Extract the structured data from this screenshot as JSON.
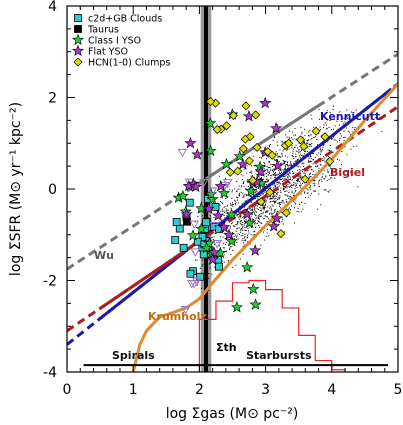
{
  "chart_data": {
    "type": "scatter",
    "title": "",
    "xlabel": "log Σgas (M⊙ pc⁻²)",
    "ylabel": "log ΣSFR (M⊙ yr⁻¹ kpc⁻²)",
    "xlim": [
      0,
      5
    ],
    "ylim": [
      -4,
      4
    ],
    "xticks": [
      "0",
      "1",
      "2",
      "3",
      "4",
      "5"
    ],
    "yticks": [
      "-4",
      "-2",
      "0",
      "2",
      "4"
    ],
    "legend_position": "top-left",
    "legend": [
      {
        "label": "c2d+GB Clouds",
        "marker": "square",
        "color": "#33cccc"
      },
      {
        "label": "Taurus",
        "marker": "square",
        "color": "#000000"
      },
      {
        "label": "Class I YSO",
        "marker": "star",
        "color": "#22cc33"
      },
      {
        "label": "Flat YSO",
        "marker": "star",
        "color": "#aa33cc"
      },
      {
        "label": "HCN(1-0) Clumps",
        "marker": "diamond",
        "color": "#dddd00"
      }
    ],
    "threshold": {
      "label": "Σth",
      "x": 2.1,
      "band": [
        2.05,
        2.15
      ]
    },
    "relations": [
      {
        "name": "Kennicutt",
        "color": "#1a1aaa",
        "points": [
          [
            0,
            -3.4
          ],
          [
            5,
            2.3
          ]
        ],
        "solid_range": [
          0.5,
          4.9
        ]
      },
      {
        "name": "Bigiel",
        "color": "#b01c1c",
        "points": [
          [
            0,
            -3.1
          ],
          [
            5,
            1.8
          ]
        ],
        "solid_range": [
          0.5,
          2.0
        ]
      },
      {
        "name": "Wu",
        "color": "#777777",
        "points": [
          [
            0,
            -1.75
          ],
          [
            5,
            2.95
          ]
        ],
        "solid_range": [
          2.1,
          3.8
        ]
      },
      {
        "name": "Krumholz",
        "color": "#e08a2e"
      }
    ],
    "krumholz_curve": [
      [
        1.0,
        -4.0
      ],
      [
        1.1,
        -3.4
      ],
      [
        1.2,
        -3.1
      ],
      [
        1.4,
        -2.8
      ],
      [
        1.6,
        -2.7
      ],
      [
        1.8,
        -2.6
      ],
      [
        2.0,
        -2.4
      ],
      [
        2.2,
        -2.05
      ],
      [
        2.5,
        -1.55
      ],
      [
        3.0,
        -0.8
      ],
      [
        3.5,
        -0.1
      ],
      [
        4.0,
        0.65
      ],
      [
        4.5,
        1.5
      ],
      [
        5.0,
        2.3
      ]
    ],
    "histogram": {
      "color": "#ee2222",
      "edges": [
        2.0,
        2.25,
        2.5,
        2.75,
        3.0,
        3.25,
        3.5,
        3.75,
        4.0,
        4.2
      ],
      "tops": [
        -2.85,
        -2.45,
        -2.05,
        -2.0,
        -2.2,
        -2.6,
        -3.2,
        -3.75,
        -3.95
      ]
    },
    "regimes": {
      "spirals": "Spirals",
      "starbursts": "Starbursts",
      "line_y": -3.85,
      "line_x": [
        0.25,
        4.85
      ]
    },
    "clusters": [
      {
        "series": "c2d+GB Clouds",
        "n": 24,
        "x_range": [
          1.6,
          2.3
        ],
        "y_center": -0.9,
        "y_spread": 0.55
      },
      {
        "series": "Taurus",
        "n": 1,
        "x_range": [
          1.75,
          1.85
        ],
        "y_center": -0.7,
        "y_spread": 0.05
      },
      {
        "series": "Class I YSO",
        "n": 28,
        "x_range": [
          1.65,
          3.0
        ],
        "y_center": -0.2,
        "y_spread": 1.0
      },
      {
        "series": "Flat YSO",
        "n": 26,
        "x_range": [
          1.65,
          3.2
        ],
        "y_center": -0.4,
        "y_spread": 1.1
      },
      {
        "series": "HCN(1-0) Clumps",
        "n": 30,
        "x_range": [
          2.1,
          4.0
        ],
        "y_center": 0.9,
        "y_spread": 0.7
      }
    ],
    "galaxy_cloud": {
      "n": 1700,
      "x_center": 3.1,
      "x_spread": 0.55,
      "slope": 1.1,
      "y_offset": -3.4,
      "y_spread": 0.45
    }
  }
}
